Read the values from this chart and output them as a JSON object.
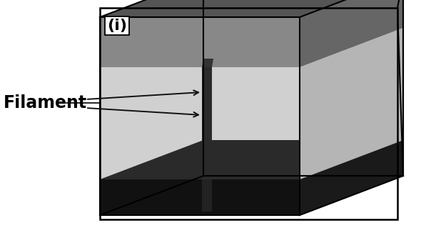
{
  "label_i": "(i)",
  "label_filament": "Filament",
  "bg_color": "#ffffff",
  "top_electrode_color_top": "#666666",
  "top_electrode_color_front": "#999999",
  "mid_layer_color_front": "#cccccc",
  "mid_layer_color_right": "#b8b8b8",
  "bot_electrode_color_front": "#111111",
  "bot_electrode_color_top": "#333333",
  "bot_floor_color": "#888888",
  "filament_color": "#2a2a2a",
  "label_fontsize": 17,
  "label_i_fontsize": 16
}
